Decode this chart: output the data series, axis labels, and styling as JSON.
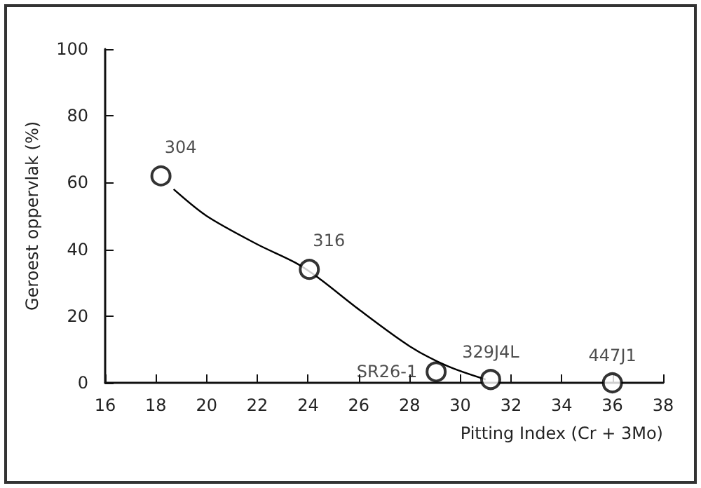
{
  "chart_data": {
    "type": "scatter",
    "xlabel": "Pitting Index (Cr + 3Mo)",
    "ylabel": "Geroest oppervlak (%)",
    "series": [
      {
        "color": "#000000",
        "x": [
          18.2,
          24.05,
          29.05,
          31.2,
          36
        ],
        "values": [
          62,
          34,
          3.3,
          1,
          0
        ],
        "marker": "circle"
      },
      {
        "type": "line",
        "color": "#000000",
        "x": [
          18.7,
          20,
          22,
          23.5,
          24.4,
          26,
          28,
          29.5,
          31
        ],
        "values": [
          58,
          50,
          41.5,
          36,
          31.5,
          22,
          11,
          5,
          1
        ],
        "marker": "none",
        "line_style": "solid"
      }
    ],
    "annotations": [
      {
        "text": "304",
        "x": 18.2,
        "y": 62
      },
      {
        "text": "316",
        "x": 24.05,
        "y": 34
      },
      {
        "text": "SR26-1",
        "x": 29.05,
        "y": 3.3
      },
      {
        "text": "329J4L",
        "x": 31.2,
        "y": 1
      },
      {
        "text": "447J1",
        "x": 36,
        "y": 0
      }
    ],
    "xlim": [
      16,
      38
    ],
    "xticks": [
      16,
      18,
      20,
      22,
      24,
      26,
      28,
      30,
      32,
      34,
      36,
      38
    ],
    "ylim": [
      0,
      100
    ],
    "yticks": [
      0,
      20,
      40,
      60,
      80,
      100
    ],
    "grid": false
  }
}
